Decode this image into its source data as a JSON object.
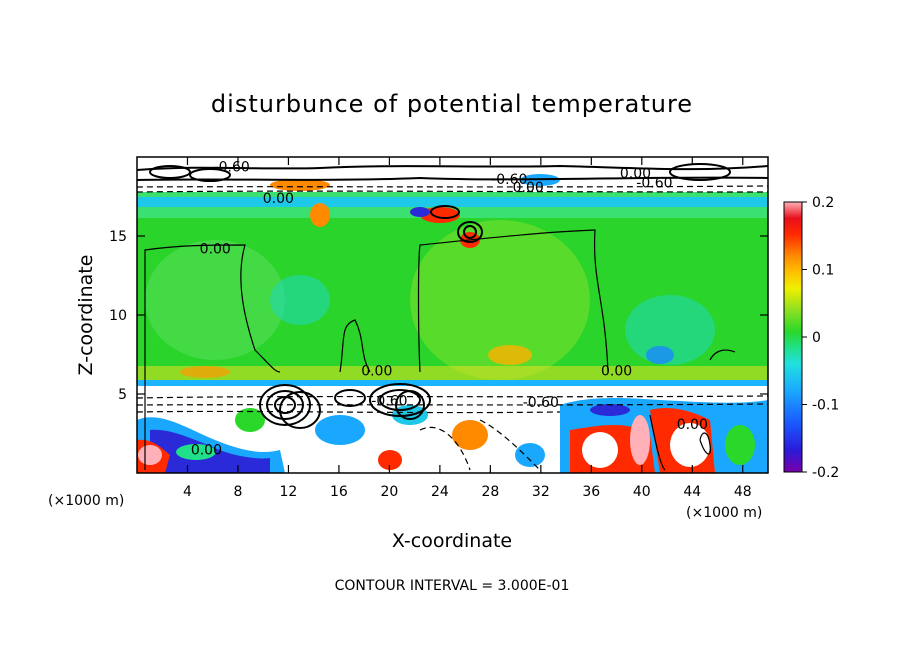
{
  "chart_data": {
    "type": "heatmap",
    "title": "disturbunce of potential temperature",
    "xlabel": "X-coordinate",
    "ylabel": "Z-coordinate",
    "x_unit": "(×1000 m)",
    "x_unit_right": "(×1000 m)",
    "xlim": [
      0,
      50
    ],
    "ylim": [
      0,
      20
    ],
    "x_ticks": [
      "4",
      "8",
      "12",
      "16",
      "20",
      "24",
      "28",
      "32",
      "36",
      "40",
      "44",
      "48"
    ],
    "x_tick_values": [
      4,
      8,
      12,
      16,
      20,
      24,
      28,
      32,
      36,
      40,
      44,
      48
    ],
    "y_ticks": [
      "5",
      "10",
      "15"
    ],
    "y_tick_values": [
      5,
      10,
      15
    ],
    "colorbar": {
      "range": [
        -0.2,
        0.2
      ],
      "tick_labels": [
        "0.2",
        "0.1",
        "0",
        "-0.1",
        "-0.2"
      ],
      "tick_values": [
        0.2,
        0.1,
        0,
        -0.1,
        -0.2
      ]
    },
    "contour_interval_text": "CONTOUR INTERVAL = 3.000E-01",
    "contour_labels": [
      {
        "text": "0.00",
        "x": 6.2,
        "z": 14.2
      },
      {
        "text": "0.00",
        "x": 11.2,
        "z": 17.4
      },
      {
        "text": "0.00",
        "x": 19,
        "z": 6.5
      },
      {
        "text": "0.00",
        "x": 38,
        "z": 6.5
      },
      {
        "text": "0.00",
        "x": 44,
        "z": 3.1
      },
      {
        "text": "0.00",
        "x": 5.5,
        "z": 1.5
      },
      {
        "text": "-0.60",
        "x": 32,
        "z": 4.5
      },
      {
        "text": "-0.60",
        "x": 20,
        "z": 4.6
      },
      {
        "text": "-0.60",
        "x": 41,
        "z": 18.4
      },
      {
        "text": "-0.60",
        "x": 29.5,
        "z": 18.6
      },
      {
        "text": "0.00",
        "x": 31,
        "z": 18.1
      },
      {
        "text": "-0.60",
        "x": 7.5,
        "z": 19.4
      },
      {
        "text": "0.00",
        "x": 39.5,
        "z": 19.0
      }
    ]
  }
}
